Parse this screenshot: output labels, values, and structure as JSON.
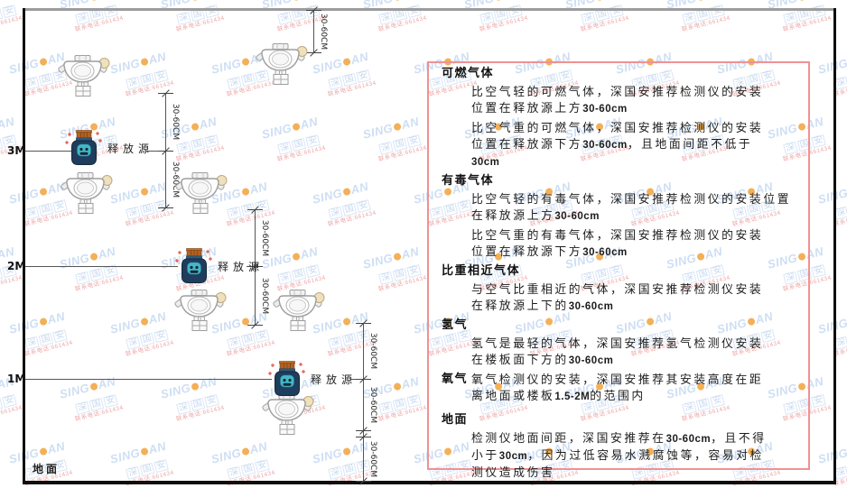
{
  "watermark": {
    "brand_prefix": "SING",
    "brand_suffix": "AN",
    "company_cn": "深国安",
    "contact_red": "联系电话:661434",
    "dot_color": "#f2a33c",
    "blue": "#c6d9f1"
  },
  "diagram": {
    "height_labels": [
      "3M",
      "2M",
      "1M"
    ],
    "ground_label": "地面",
    "release_source_label": "释放源",
    "dimension_label": "30-60CM"
  },
  "panel": {
    "border_color": "#f09193",
    "sections": [
      {
        "heading": "可燃气体",
        "paragraphs": [
          [
            "比空气轻的可燃气体，深国安推荐检测仪的安装",
            "位置在释放源上方30-60cm"
          ],
          [
            "比空气重的可燃气体，深国安推荐检测仪的安装",
            "位置在释放源下方30-60cm，且地面间距不低于",
            "30cm"
          ]
        ]
      },
      {
        "heading": "有毒气体",
        "paragraphs": [
          [
            "比空气轻的有毒气体，深国安推荐检测仪的安装位置",
            "在释放源上方30-60cm"
          ],
          [
            "比空气重的有毒气体，深国安推荐检测仪的安装",
            "位置在释放源下方30-60cm"
          ]
        ]
      },
      {
        "heading": "比重相近气体",
        "paragraphs": [
          [
            "与空气比重相近的气体，深国安推荐检测仪安装",
            "在释放源上下的30-60cm"
          ]
        ]
      },
      {
        "heading": "氢气",
        "paragraphs": [
          [
            "氢气是最轻的气体，深国安推荐氢气检测仪安装",
            "在楼板面下方的30-60cm"
          ]
        ]
      },
      {
        "heading": "氧气",
        "inline_heading": true,
        "paragraphs": [
          [
            "氧气检测仪的安装，深国安推荐其安装高度在距",
            "离地面或楼板1.5-2M的范围内"
          ]
        ]
      },
      {
        "heading": "地面",
        "ground_gap": true,
        "paragraphs": [
          [
            "检测仪地面间距，深国安推荐在30-60cm，且不得",
            "小于30cm，因为过低容易水溅腐蚀等，容易对检",
            "测仪造成伤害"
          ]
        ]
      }
    ]
  },
  "icon_colors": {
    "source_body": "#1f3d5c",
    "source_cap": "#b06125",
    "source_face": "#43b8c6",
    "detector_stroke": "#9e9e9e",
    "sensor_ball": "#efe1bd",
    "sparkle_red": "#e23b2e"
  }
}
